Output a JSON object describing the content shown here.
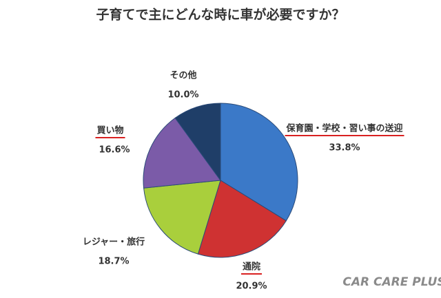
{
  "chart_data": {
    "type": "pie",
    "title": "子育てで主にどんな時に車が必要ですか？",
    "categories": [
      "保育園・学校・習い事の送迎",
      "通院",
      "レジャー・旅行",
      "買い物",
      "その他"
    ],
    "values": [
      33.8,
      20.9,
      18.7,
      16.6,
      10.0
    ],
    "value_labels": [
      "33.8%",
      "20.9%",
      "18.7%",
      "16.6%",
      "10.0%"
    ],
    "colors": [
      "#3b79c8",
      "#cf3232",
      "#a9cf3c",
      "#7b5ba8",
      "#1f3e68"
    ],
    "underlined": [
      true,
      true,
      false,
      true,
      false
    ],
    "underline_color": "#d92020",
    "watermark": "CAR CARE PLUS"
  }
}
